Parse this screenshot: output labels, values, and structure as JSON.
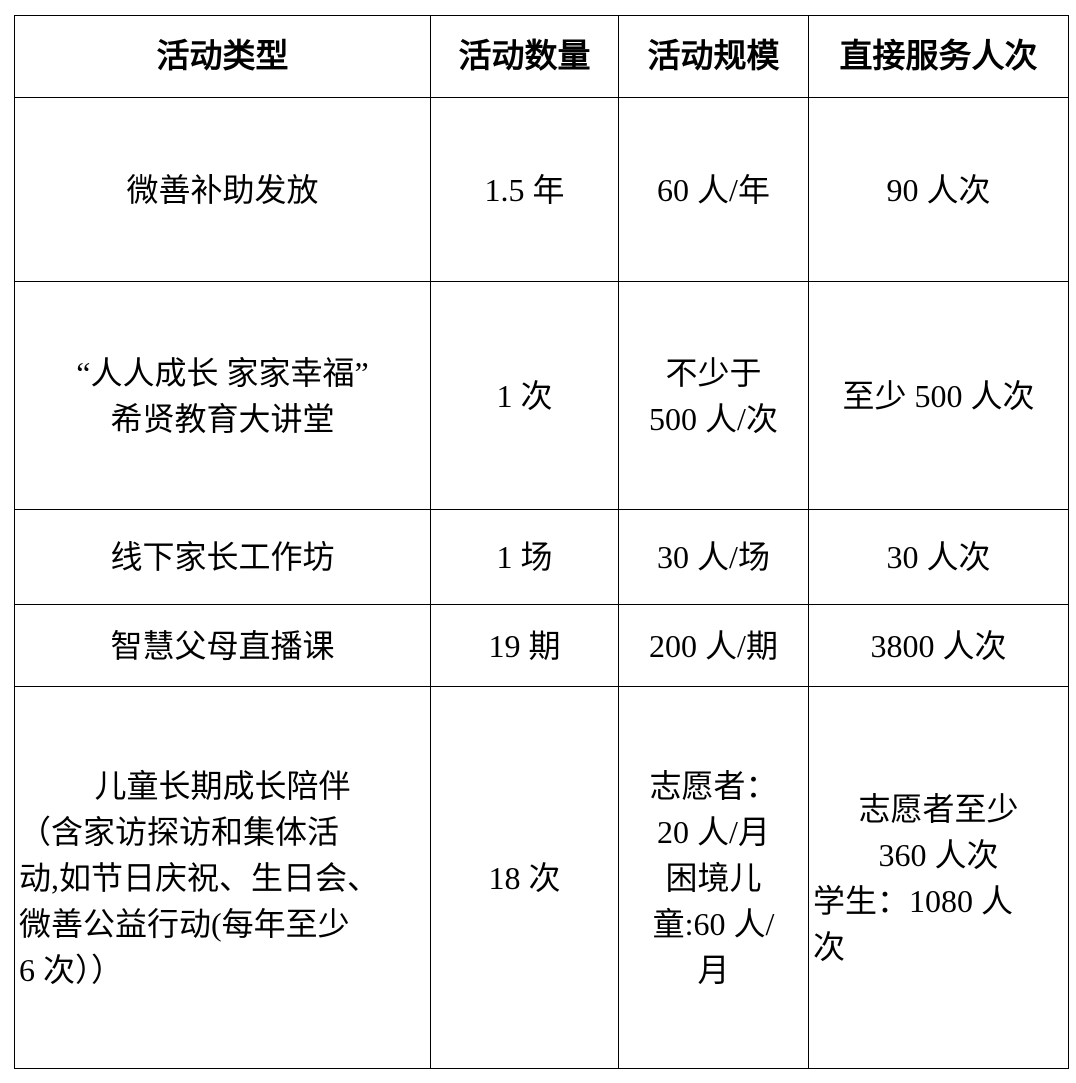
{
  "headers": [
    "活动类型",
    "活动数量",
    "活动规模",
    "直接服务人次"
  ],
  "rows": [
    {
      "type": [
        "微善补助发放"
      ],
      "count": [
        "1.5 年"
      ],
      "scale": [
        "60 人/年"
      ],
      "served": [
        "90 人次"
      ]
    },
    {
      "type": [
        "“人人成长 家家幸福”",
        "希贤教育大讲堂"
      ],
      "count": [
        "1 次"
      ],
      "scale": [
        "不少于",
        "500 人/次"
      ],
      "served": [
        "至少 500 人次"
      ]
    },
    {
      "type": [
        "线下家长工作坊"
      ],
      "count": [
        "1 场"
      ],
      "scale": [
        "30 人/场"
      ],
      "served": [
        "30 人次"
      ]
    },
    {
      "type": [
        "智慧父母直播课"
      ],
      "count": [
        "19 期"
      ],
      "scale": [
        "200 人/期"
      ],
      "served": [
        "3800 人次"
      ]
    },
    {
      "type": [
        "儿童长期成长陪伴",
        "（含家访探访和集体活",
        "动,如节日庆祝、生日会、",
        "微善公益行动(每年至少",
        "6 次））"
      ],
      "count": [
        "18 次"
      ],
      "scale": [
        "志愿者：",
        "20 人/月",
        "困境儿",
        "童:60 人/",
        "月"
      ],
      "served": [
        "志愿者至少",
        "360 人次",
        "学生：1080 人",
        "次"
      ]
    }
  ]
}
